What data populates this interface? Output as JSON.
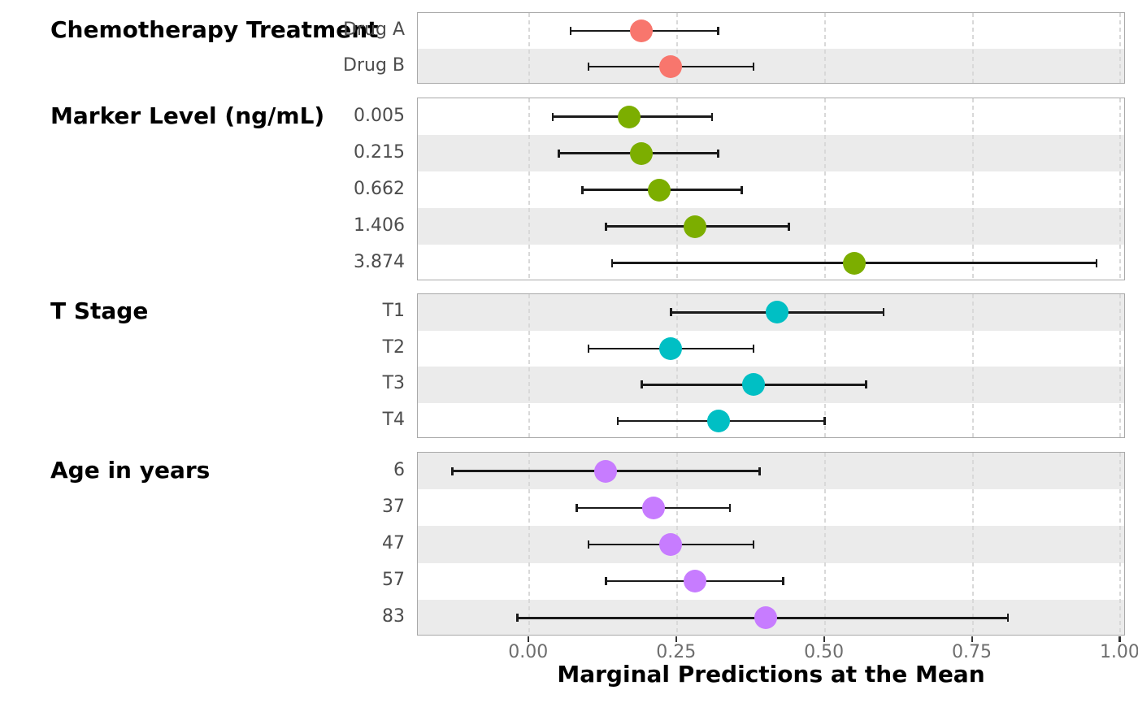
{
  "chart_data": {
    "type": "scatter",
    "subtype": "forest-pointrange",
    "title": "",
    "xlabel": "Marginal Predictions at the Mean",
    "ylabel": "",
    "xlim": [
      -0.188,
      1.009
    ],
    "x_ticks": [
      0,
      0.25,
      0.5,
      0.75,
      1
    ],
    "x_tick_labels": [
      "0.00",
      "0.25",
      "0.50",
      "0.75",
      "1.00"
    ],
    "grid": "vertical-dashed",
    "legend": "none",
    "groups": [
      {
        "title": "Chemotherapy Treatment",
        "color": "#F8766D",
        "rows": [
          {
            "label": "Drug A",
            "estimate": 0.19,
            "ci_low": 0.07,
            "ci_high": 0.32
          },
          {
            "label": "Drug B",
            "estimate": 0.24,
            "ci_low": 0.1,
            "ci_high": 0.38
          }
        ]
      },
      {
        "title": "Marker Level (ng/mL)",
        "color": "#7CAE00",
        "rows": [
          {
            "label": "0.005",
            "estimate": 0.17,
            "ci_low": 0.04,
            "ci_high": 0.31
          },
          {
            "label": "0.215",
            "estimate": 0.19,
            "ci_low": 0.05,
            "ci_high": 0.32
          },
          {
            "label": "0.662",
            "estimate": 0.22,
            "ci_low": 0.09,
            "ci_high": 0.36
          },
          {
            "label": "1.406",
            "estimate": 0.28,
            "ci_low": 0.13,
            "ci_high": 0.44
          },
          {
            "label": "3.874",
            "estimate": 0.55,
            "ci_low": 0.14,
            "ci_high": 0.96
          }
        ]
      },
      {
        "title": "T Stage",
        "color": "#00BFC4",
        "rows": [
          {
            "label": "T1",
            "estimate": 0.42,
            "ci_low": 0.24,
            "ci_high": 0.6
          },
          {
            "label": "T2",
            "estimate": 0.24,
            "ci_low": 0.1,
            "ci_high": 0.38
          },
          {
            "label": "T3",
            "estimate": 0.38,
            "ci_low": 0.19,
            "ci_high": 0.57
          },
          {
            "label": "T4",
            "estimate": 0.32,
            "ci_low": 0.15,
            "ci_high": 0.5
          }
        ]
      },
      {
        "title": "Age in years",
        "color": "#C77CFF",
        "rows": [
          {
            "label": "6",
            "estimate": 0.13,
            "ci_low": -0.13,
            "ci_high": 0.39
          },
          {
            "label": "37",
            "estimate": 0.21,
            "ci_low": 0.08,
            "ci_high": 0.34
          },
          {
            "label": "47",
            "estimate": 0.24,
            "ci_low": 0.1,
            "ci_high": 0.38
          },
          {
            "label": "57",
            "estimate": 0.28,
            "ci_low": 0.13,
            "ci_high": 0.43
          },
          {
            "label": "83",
            "estimate": 0.4,
            "ci_low": -0.02,
            "ci_high": 0.81
          }
        ]
      }
    ],
    "colors": {
      "background": "#FFFFFF",
      "stripe": "#EBEBEB",
      "panel_border": "#A9A9A9",
      "gridline": "#D9D9D9",
      "errorbar": "#1A1A1A",
      "tick_mark": "#333333",
      "tick_label_text": "#6E6E6E",
      "row_label_text": "#4D4D4D",
      "group_title_text": "#000000",
      "axis_title_text": "#000000"
    }
  }
}
